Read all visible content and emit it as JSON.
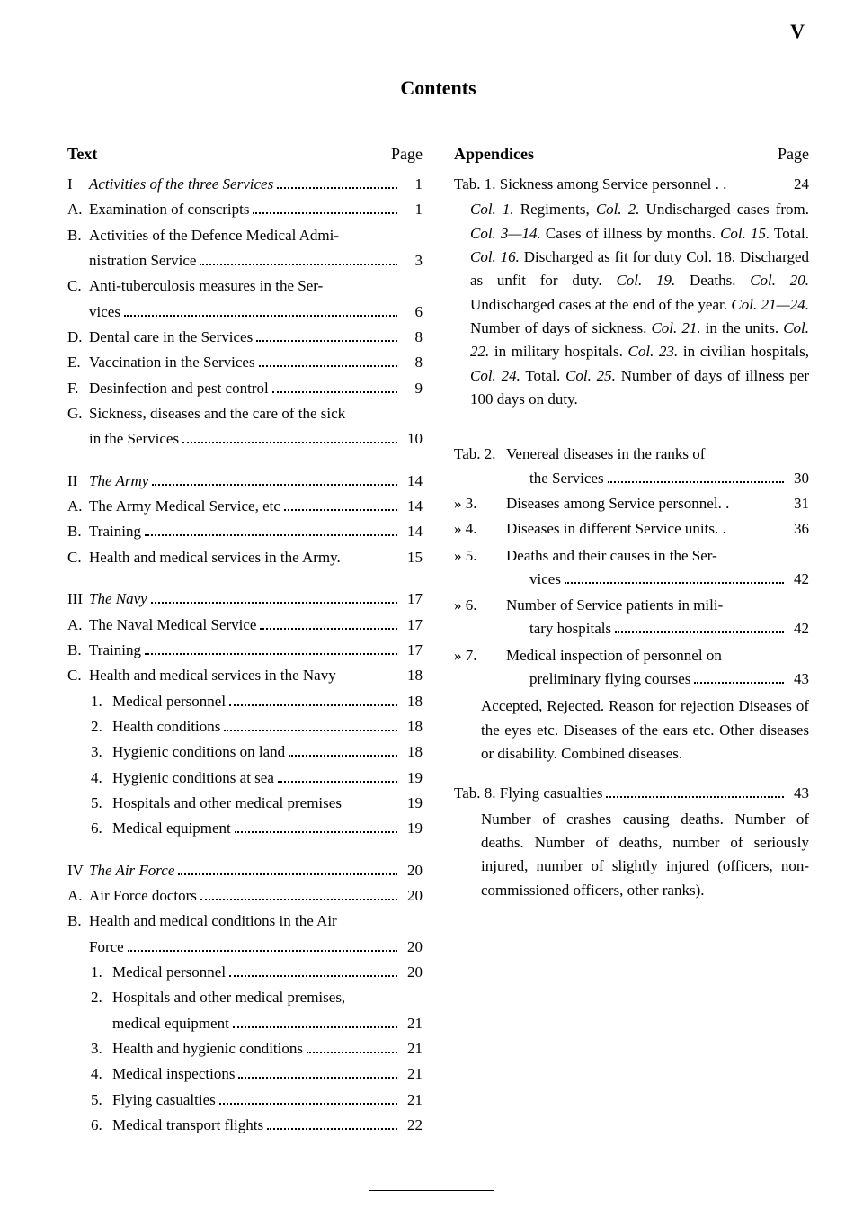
{
  "page_number_top": "V",
  "title": "Contents",
  "left": {
    "header_left": "Text",
    "header_right": "Page",
    "items": [
      {
        "type": "line",
        "indent": 0,
        "marker": "I",
        "italic": true,
        "text": "Activities of the three Services",
        "page": "1"
      },
      {
        "type": "line",
        "indent": 1,
        "marker": "A.",
        "text": "Examination of conscripts",
        "page": "1"
      },
      {
        "type": "multi",
        "indent": 1,
        "marker": "B.",
        "first": "Activities of the Defence Medical Admi-",
        "rest": "nistration Service",
        "page": "3"
      },
      {
        "type": "multi",
        "indent": 1,
        "marker": "C.",
        "first": "Anti-tuberculosis measures in the Ser-",
        "rest": "vices",
        "page": "6"
      },
      {
        "type": "line",
        "indent": 1,
        "marker": "D.",
        "text": "Dental care in the Services",
        "page": "8"
      },
      {
        "type": "line",
        "indent": 1,
        "marker": "E.",
        "text": "Vaccination in the Services",
        "page": "8"
      },
      {
        "type": "line",
        "indent": 1,
        "marker": "F.",
        "text": "Desinfection and pest control",
        "page": "9"
      },
      {
        "type": "multi",
        "indent": 1,
        "marker": "G.",
        "first": "Sickness, diseases and the care of the sick",
        "rest": "in the Services",
        "page": "10"
      },
      {
        "type": "gap"
      },
      {
        "type": "line",
        "indent": 0,
        "marker": "II",
        "italic": true,
        "text": "The Army",
        "page": "14"
      },
      {
        "type": "line",
        "indent": 1,
        "marker": "A.",
        "text": "The Army Medical Service, etc",
        "page": "14"
      },
      {
        "type": "line",
        "indent": 1,
        "marker": "B.",
        "text": "Training",
        "page": "14"
      },
      {
        "type": "line",
        "indent": 1,
        "marker": "C.",
        "text": "Health and medical services in the Army.",
        "page": "15",
        "nodots": true
      },
      {
        "type": "gap"
      },
      {
        "type": "line",
        "indent": 0,
        "marker": "III",
        "italic": true,
        "text": "The Navy",
        "page": "17"
      },
      {
        "type": "line",
        "indent": 1,
        "marker": "A.",
        "text": "The Naval Medical Service",
        "page": "17"
      },
      {
        "type": "line",
        "indent": 1,
        "marker": "B.",
        "text": "Training",
        "page": "17"
      },
      {
        "type": "line",
        "indent": 1,
        "marker": "C.",
        "text": "Health and medical services in the Navy",
        "page": "18",
        "nodots": true
      },
      {
        "type": "line",
        "indent": 2,
        "marker": "1.",
        "text": "Medical personnel",
        "page": "18"
      },
      {
        "type": "line",
        "indent": 2,
        "marker": "2.",
        "text": "Health conditions",
        "page": "18"
      },
      {
        "type": "line",
        "indent": 2,
        "marker": "3.",
        "text": "Hygienic conditions on land",
        "page": "18"
      },
      {
        "type": "line",
        "indent": 2,
        "marker": "4.",
        "text": "Hygienic conditions at sea",
        "page": "19"
      },
      {
        "type": "line",
        "indent": 2,
        "marker": "5.",
        "text": "Hospitals and other medical premises",
        "page": "19",
        "nodots": true
      },
      {
        "type": "line",
        "indent": 2,
        "marker": "6.",
        "text": "Medical equipment",
        "page": "19"
      },
      {
        "type": "gap"
      },
      {
        "type": "line",
        "indent": 0,
        "marker": "IV",
        "italic": true,
        "text": "The Air Force",
        "page": "20"
      },
      {
        "type": "line",
        "indent": 1,
        "marker": "A.",
        "text": "Air Force doctors",
        "page": "20"
      },
      {
        "type": "multi",
        "indent": 1,
        "marker": "B.",
        "first": "Health and medical conditions in the Air",
        "rest": "Force",
        "page": "20"
      },
      {
        "type": "line",
        "indent": 2,
        "marker": "1.",
        "text": "Medical personnel",
        "page": "20"
      },
      {
        "type": "multi",
        "indent": 2,
        "marker": "2.",
        "first": "Hospitals and other medical premises,",
        "rest": "medical equipment",
        "page": "21"
      },
      {
        "type": "line",
        "indent": 2,
        "marker": "3.",
        "text": "Health and hygienic conditions",
        "page": "21"
      },
      {
        "type": "line",
        "indent": 2,
        "marker": "4.",
        "text": "Medical inspections",
        "page": "21"
      },
      {
        "type": "line",
        "indent": 2,
        "marker": "5.",
        "text": "Flying casualties",
        "page": "21"
      },
      {
        "type": "line",
        "indent": 2,
        "marker": "6.",
        "text": "Medical transport flights",
        "page": "22"
      }
    ]
  },
  "right": {
    "header_left": "Appendices",
    "header_right": "Page",
    "tab1": {
      "lead": "Tab. 1. Sickness among Service personnel . .",
      "page": "24",
      "body_segments": [
        {
          "italic": true,
          "text": "Col. 1."
        },
        {
          "text": " Regiments, "
        },
        {
          "italic": true,
          "text": "Col. 2."
        },
        {
          "text": " Undischarged cases from. "
        },
        {
          "italic": true,
          "text": "Col. 3—14."
        },
        {
          "text": " Cases of illness by months. "
        },
        {
          "italic": true,
          "text": "Col. 15."
        },
        {
          "text": " Total. "
        },
        {
          "italic": true,
          "text": "Col. 16."
        },
        {
          "text": " Discharged as fit for duty Col. 18. Discharged as unfit for duty. "
        },
        {
          "italic": true,
          "text": "Col. 19."
        },
        {
          "text": " Deaths. "
        },
        {
          "italic": true,
          "text": "Col. 20."
        },
        {
          "text": " Undischarged cases at the end of the year. "
        },
        {
          "italic": true,
          "text": "Col. 21—24."
        },
        {
          "text": " Number of days of sickness. "
        },
        {
          "italic": true,
          "text": "Col. 21."
        },
        {
          "text": " in the units. "
        },
        {
          "italic": true,
          "text": "Col. 22."
        },
        {
          "text": " in military hospitals. "
        },
        {
          "italic": true,
          "text": "Col. 23."
        },
        {
          "text": " in civilian hospitals, "
        },
        {
          "italic": true,
          "text": "Col. 24."
        },
        {
          "text": " Total. "
        },
        {
          "italic": true,
          "text": "Col. 25."
        },
        {
          "text": " Number of days of illness per 100 days on duty."
        }
      ]
    },
    "tabs": [
      {
        "marker": "Tab. 2.",
        "first": "Venereal diseases in the ranks of",
        "rest": "the Services",
        "page": "30"
      },
      {
        "marker": "»   3.",
        "text": "Diseases among Service personnel. .",
        "page": "31",
        "nodots": true
      },
      {
        "marker": "»   4.",
        "text": "Diseases in different Service units. .",
        "page": "36",
        "nodots": true
      },
      {
        "marker": "»   5.",
        "first": "Deaths and their causes in the Ser-",
        "rest": "vices",
        "page": "42"
      },
      {
        "marker": "»   6.",
        "first": "Number of Service patients in mili-",
        "rest": "tary hospitals",
        "page": "42"
      },
      {
        "marker": "»   7.",
        "first": "Medical inspection of personnel on",
        "rest": "preliminary flying courses",
        "page": "43"
      }
    ],
    "tab7_body": "Accepted, Rejected. Reason for rejection Diseases of the eyes etc. Diseases of the ears etc. Other diseases or disability. Combined diseases.",
    "tab8": {
      "lead": "Tab. 8. Flying casualties",
      "page": "43",
      "body": "Number of crashes causing deaths. Number of deaths. Number of deaths, number of seriously injured, number of slightly injured (officers, non-commissioned officers, other ranks)."
    }
  }
}
